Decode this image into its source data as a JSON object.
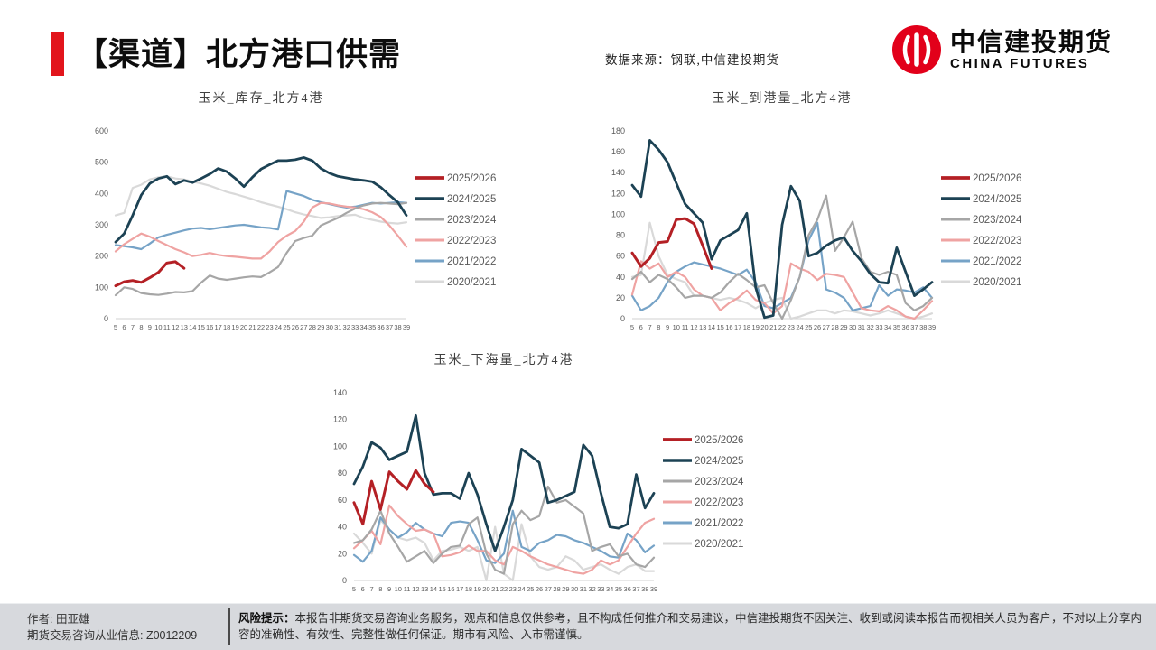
{
  "header": {
    "title": "【渠道】北方港口供需",
    "data_source": "数据来源：钢联,中信建投期货",
    "logo": {
      "name_cn": "中信建投期货",
      "name_en": "CHINA FUTURES",
      "brand_color": "#E2001A",
      "icon": "citic-futures-red-circle-logo"
    }
  },
  "series_colors": {
    "2025/2026": "#B42025",
    "2024/2025": "#1C4254",
    "2023/2024": "#A6A6A6",
    "2022/2023": "#EFA3A2",
    "2021/2022": "#76A3C7",
    "2020/2021": "#D9D9D9"
  },
  "chart_data": [
    {
      "type": "line",
      "title": "玉米_库存_北方4港",
      "xlabel": "",
      "ylabel": "",
      "ylim": [
        0,
        600
      ],
      "ytick": 100,
      "grid": false,
      "legend_position": "right",
      "x": [
        5,
        6,
        7,
        8,
        9,
        10,
        11,
        12,
        13,
        14,
        15,
        16,
        17,
        18,
        19,
        20,
        21,
        22,
        23,
        24,
        25,
        26,
        27,
        28,
        29,
        30,
        31,
        32,
        33,
        34,
        35,
        36,
        37,
        38,
        39
      ],
      "series": [
        {
          "name": "2025/2026",
          "values": [
            105,
            118,
            122,
            116,
            131,
            148,
            178,
            182,
            161
          ]
        },
        {
          "name": "2024/2025",
          "values": [
            245,
            272,
            330,
            395,
            432,
            448,
            455,
            430,
            442,
            435,
            448,
            462,
            480,
            470,
            448,
            422,
            452,
            478,
            492,
            505,
            505,
            508,
            515,
            505,
            480,
            465,
            455,
            450,
            445,
            442,
            438,
            420,
            395,
            372,
            330
          ]
        },
        {
          "name": "2023/2024",
          "values": [
            75,
            100,
            95,
            82,
            78,
            76,
            80,
            85,
            84,
            88,
            115,
            138,
            128,
            124,
            128,
            132,
            135,
            133,
            148,
            165,
            210,
            248,
            258,
            265,
            298,
            310,
            322,
            338,
            352,
            362,
            368,
            370,
            368,
            366,
            370
          ]
        },
        {
          "name": "2022/2023",
          "values": [
            215,
            238,
            255,
            272,
            262,
            248,
            235,
            222,
            212,
            200,
            204,
            210,
            204,
            200,
            198,
            195,
            192,
            192,
            215,
            245,
            265,
            280,
            310,
            355,
            370,
            368,
            362,
            358,
            355,
            350,
            340,
            325,
            298,
            265,
            230
          ]
        },
        {
          "name": "2021/2022",
          "values": [
            235,
            232,
            228,
            222,
            240,
            260,
            268,
            275,
            282,
            288,
            290,
            286,
            290,
            294,
            298,
            300,
            296,
            292,
            290,
            285,
            408,
            400,
            392,
            380,
            372,
            366,
            360,
            355,
            358,
            364,
            370,
            368,
            370,
            372,
            370
          ]
        },
        {
          "name": "2020/2021",
          "values": [
            330,
            338,
            418,
            428,
            445,
            452,
            455,
            448,
            445,
            438,
            432,
            425,
            415,
            405,
            398,
            390,
            382,
            372,
            365,
            358,
            350,
            340,
            333,
            328,
            322,
            324,
            328,
            330,
            332,
            322,
            316,
            310,
            306,
            304,
            308
          ]
        }
      ]
    },
    {
      "type": "line",
      "title": "玉米_到港量_北方4港",
      "xlabel": "",
      "ylabel": "",
      "ylim": [
        0,
        180
      ],
      "ytick": 20,
      "grid": false,
      "legend_position": "right",
      "x": [
        5,
        6,
        7,
        8,
        9,
        10,
        11,
        12,
        13,
        14,
        15,
        16,
        17,
        18,
        19,
        20,
        21,
        22,
        23,
        24,
        25,
        26,
        27,
        28,
        29,
        30,
        31,
        32,
        33,
        34,
        35,
        36,
        37,
        38,
        39
      ],
      "series": [
        {
          "name": "2025/2026",
          "values": [
            63,
            50,
            58,
            73,
            74,
            95,
            96,
            91,
            70,
            48
          ]
        },
        {
          "name": "2024/2025",
          "values": [
            128,
            117,
            171,
            162,
            150,
            130,
            110,
            101,
            92,
            57,
            75,
            80,
            85,
            101,
            30,
            1,
            3,
            90,
            127,
            113,
            60,
            63,
            70,
            75,
            78,
            65,
            55,
            43,
            35,
            34,
            68,
            45,
            22,
            28,
            35
          ]
        },
        {
          "name": "2023/2024",
          "values": [
            38,
            45,
            35,
            42,
            38,
            30,
            20,
            22,
            22,
            20,
            25,
            35,
            43,
            37,
            30,
            32,
            15,
            0,
            18,
            40,
            80,
            95,
            118,
            65,
            78,
            93,
            58,
            45,
            42,
            45,
            42,
            15,
            8,
            12,
            20
          ]
        },
        {
          "name": "2022/2023",
          "values": [
            23,
            55,
            48,
            53,
            40,
            45,
            40,
            28,
            22,
            20,
            8,
            15,
            20,
            27,
            18,
            15,
            5,
            12,
            53,
            48,
            45,
            37,
            43,
            42,
            40,
            25,
            10,
            8,
            7,
            12,
            8,
            2,
            0,
            8,
            17
          ]
        },
        {
          "name": "2021/2022",
          "values": [
            22,
            8,
            12,
            20,
            35,
            45,
            50,
            54,
            52,
            50,
            48,
            45,
            42,
            47,
            35,
            12,
            10,
            15,
            20,
            40,
            75,
            92,
            28,
            25,
            20,
            8,
            10,
            12,
            32,
            22,
            28,
            27,
            25,
            30,
            20
          ]
        },
        {
          "name": "2020/2021",
          "values": [
            40,
            42,
            92,
            60,
            42,
            38,
            35,
            22,
            22,
            20,
            18,
            20,
            18,
            15,
            10,
            15,
            18,
            20,
            0,
            2,
            5,
            8,
            8,
            5,
            8,
            7,
            5,
            3,
            5,
            8,
            5,
            2,
            0,
            2,
            5
          ]
        }
      ]
    },
    {
      "type": "line",
      "title": "玉米_下海量_北方4港",
      "xlabel": "",
      "ylabel": "",
      "ylim": [
        0,
        140
      ],
      "ytick": 20,
      "grid": false,
      "legend_position": "right",
      "x": [
        5,
        6,
        7,
        8,
        9,
        10,
        11,
        12,
        13,
        14,
        15,
        16,
        17,
        18,
        19,
        20,
        21,
        22,
        23,
        24,
        25,
        26,
        27,
        28,
        29,
        30,
        31,
        32,
        33,
        34,
        35,
        36,
        37,
        38,
        39
      ],
      "series": [
        {
          "name": "2025/2026",
          "values": [
            58,
            42,
            74,
            53,
            81,
            74,
            68,
            82,
            72,
            66
          ]
        },
        {
          "name": "2024/2025",
          "values": [
            72,
            85,
            103,
            99,
            90,
            93,
            96,
            123,
            80,
            64,
            65,
            65,
            61,
            80,
            64,
            42,
            22,
            40,
            60,
            98,
            93,
            88,
            58,
            60,
            63,
            66,
            101,
            93,
            65,
            40,
            39,
            42,
            79,
            54,
            65
          ]
        },
        {
          "name": "2023/2024",
          "values": [
            28,
            30,
            38,
            52,
            35,
            25,
            14,
            18,
            22,
            13,
            20,
            25,
            26,
            42,
            47,
            20,
            8,
            5,
            42,
            52,
            45,
            48,
            70,
            58,
            60,
            55,
            50,
            22,
            25,
            27,
            18,
            20,
            12,
            10,
            17
          ]
        },
        {
          "name": "2022/2023",
          "values": [
            24,
            30,
            37,
            27,
            56,
            48,
            42,
            37,
            38,
            35,
            18,
            19,
            21,
            26,
            22,
            22,
            15,
            12,
            25,
            22,
            18,
            15,
            12,
            10,
            8,
            6,
            5,
            8,
            15,
            12,
            15,
            25,
            35,
            43,
            46
          ]
        },
        {
          "name": "2021/2022",
          "values": [
            19,
            14,
            22,
            47,
            38,
            32,
            36,
            43,
            38,
            35,
            33,
            43,
            44,
            43,
            30,
            15,
            13,
            20,
            52,
            25,
            22,
            28,
            30,
            34,
            33,
            30,
            28,
            25,
            22,
            18,
            17,
            35,
            30,
            21,
            26
          ]
        },
        {
          "name": "2020/2021",
          "values": [
            35,
            28,
            20,
            45,
            38,
            32,
            30,
            32,
            28,
            15,
            22,
            23,
            25,
            22,
            25,
            0,
            40,
            5,
            0,
            42,
            18,
            10,
            8,
            10,
            18,
            15,
            8,
            10,
            12,
            8,
            5,
            10,
            12,
            7,
            7
          ]
        }
      ]
    }
  ],
  "footer": {
    "author_line1": "作者: 田亚雄",
    "author_line2": "期货交易咨询从业信息: Z0012209",
    "risk_label": "风险提示：",
    "risk_text": "本报告非期货交易咨询业务服务，观点和信息仅供参考，且不构成任何推介和交易建议，中信建投期货不因关注、收到或阅读本报告而视相关人员为客户，不对以上分享内容的准确性、有效性、完整性做任何保证。期市有风险、入市需谨慎。"
  }
}
